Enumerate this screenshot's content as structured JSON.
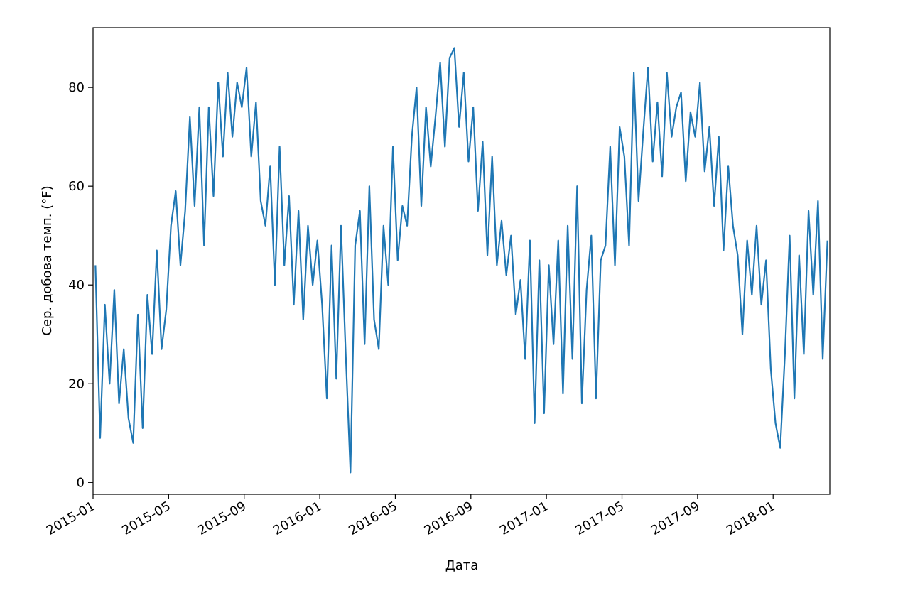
{
  "chart_data": {
    "type": "line",
    "xlabel": "Дата",
    "ylabel": "Сер. добова темп. (°F)",
    "x": [
      "2015-01",
      "2015-01",
      "2015-01",
      "2015-01",
      "2015-02",
      "2015-02",
      "2015-02",
      "2015-02",
      "2015-03",
      "2015-03",
      "2015-03",
      "2015-03",
      "2015-04",
      "2015-04",
      "2015-04",
      "2015-04",
      "2015-05",
      "2015-05",
      "2015-05",
      "2015-05",
      "2015-06",
      "2015-06",
      "2015-06",
      "2015-06",
      "2015-07",
      "2015-07",
      "2015-07",
      "2015-07",
      "2015-08",
      "2015-08",
      "2015-08",
      "2015-08",
      "2015-09",
      "2015-09",
      "2015-09",
      "2015-09",
      "2015-10",
      "2015-10",
      "2015-10",
      "2015-10",
      "2015-11",
      "2015-11",
      "2015-11",
      "2015-11",
      "2015-12",
      "2015-12",
      "2015-12",
      "2015-12",
      "2016-01",
      "2016-01",
      "2016-01",
      "2016-01",
      "2016-02",
      "2016-02",
      "2016-02",
      "2016-02",
      "2016-03",
      "2016-03",
      "2016-03",
      "2016-03",
      "2016-04",
      "2016-04",
      "2016-04",
      "2016-04",
      "2016-05",
      "2016-05",
      "2016-05",
      "2016-05",
      "2016-06",
      "2016-06",
      "2016-06",
      "2016-06",
      "2016-07",
      "2016-07",
      "2016-07",
      "2016-07",
      "2016-08",
      "2016-08",
      "2016-08",
      "2016-08",
      "2016-09",
      "2016-09",
      "2016-09",
      "2016-09",
      "2016-10",
      "2016-10",
      "2016-10",
      "2016-10",
      "2016-11",
      "2016-11",
      "2016-11",
      "2016-11",
      "2016-12",
      "2016-12",
      "2016-12",
      "2016-12",
      "2017-01",
      "2017-01",
      "2017-01",
      "2017-01",
      "2017-02",
      "2017-02",
      "2017-02",
      "2017-02",
      "2017-03",
      "2017-03",
      "2017-03",
      "2017-03",
      "2017-04",
      "2017-04",
      "2017-04",
      "2017-04",
      "2017-05",
      "2017-05",
      "2017-05",
      "2017-05",
      "2017-06",
      "2017-06",
      "2017-06",
      "2017-06",
      "2017-07",
      "2017-07",
      "2017-07",
      "2017-07",
      "2017-08",
      "2017-08",
      "2017-08",
      "2017-08",
      "2017-09",
      "2017-09",
      "2017-09",
      "2017-09",
      "2017-10",
      "2017-10",
      "2017-10",
      "2017-10",
      "2017-11",
      "2017-11",
      "2017-11",
      "2017-11",
      "2017-12",
      "2017-12",
      "2017-12",
      "2017-12",
      "2018-01",
      "2018-01",
      "2018-01",
      "2018-01",
      "2018-02",
      "2018-02",
      "2018-02",
      "2018-02",
      "2018-03",
      "2018-03",
      "2018-03",
      "2018-03"
    ],
    "series": [
      {
        "name": "Сер. добова темп. (°F)",
        "color": "#1f77b4",
        "values": [
          44,
          9,
          36,
          20,
          39,
          16,
          27,
          13,
          8,
          34,
          11,
          38,
          26,
          47,
          27,
          35,
          52,
          59,
          44,
          55,
          74,
          56,
          76,
          48,
          76,
          58,
          81,
          66,
          83,
          70,
          81,
          76,
          84,
          66,
          77,
          57,
          52,
          64,
          40,
          68,
          44,
          58,
          36,
          55,
          33,
          52,
          40,
          49,
          36,
          17,
          48,
          21,
          52,
          26,
          2,
          48,
          55,
          28,
          60,
          33,
          27,
          52,
          40,
          68,
          45,
          56,
          52,
          70,
          80,
          56,
          76,
          64,
          74,
          85,
          68,
          86,
          88,
          72,
          83,
          65,
          76,
          55,
          69,
          46,
          66,
          44,
          53,
          42,
          50,
          34,
          41,
          25,
          49,
          12,
          45,
          14,
          44,
          28,
          49,
          18,
          52,
          25,
          60,
          16,
          39,
          50,
          17,
          45,
          48,
          68,
          44,
          72,
          66,
          48,
          83,
          57,
          71,
          84,
          65,
          77,
          62,
          83,
          70,
          76,
          79,
          61,
          75,
          70,
          81,
          63,
          72,
          56,
          70,
          47,
          64,
          52,
          46,
          30,
          49,
          38,
          52,
          36,
          45,
          23,
          12,
          7,
          26,
          50,
          17,
          46,
          26,
          55,
          38,
          57,
          25,
          49
        ]
      }
    ],
    "xlim": [
      "2015-01",
      "2018-04"
    ],
    "xticks": [
      "2015-01",
      "2015-05",
      "2015-09",
      "2016-01",
      "2016-05",
      "2016-09",
      "2017-01",
      "2017-05",
      "2017-09",
      "2018-01"
    ],
    "ylim": [
      -2.4,
      92.1
    ],
    "yticks": [
      0,
      20,
      40,
      60,
      80
    ]
  }
}
